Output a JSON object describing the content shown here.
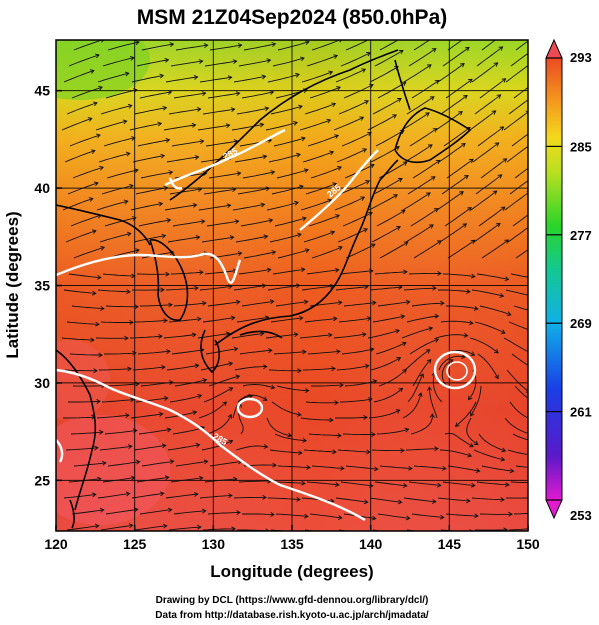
{
  "chart_data": {
    "type": "heatmap",
    "title": "MSM 21Z04Sep2024 (850.0hPa)",
    "xlabel": "Longitude (degrees)",
    "ylabel": "Latitude  (degrees)",
    "xlim": [
      120,
      150
    ],
    "ylim": [
      22.4,
      47.6
    ],
    "x_ticks": [
      120,
      125,
      130,
      135,
      140,
      145,
      150
    ],
    "x_tick_labels": [
      "120",
      "125",
      "130",
      "135",
      "140",
      "145",
      "150"
    ],
    "y_ticks": [
      25,
      30,
      35,
      40,
      45
    ],
    "y_tick_labels": [
      "25",
      "30",
      "35",
      "40",
      "45"
    ],
    "grid": true,
    "colorbar": {
      "placement": "right",
      "range": [
        253,
        293
      ],
      "ticks": [
        253,
        261,
        269,
        277,
        285,
        293
      ],
      "tick_labels": [
        "253",
        "261",
        "269",
        "277",
        "285",
        "293"
      ],
      "extend": "both"
    },
    "contours": [
      {
        "label": "285",
        "color": "#ffffff"
      }
    ],
    "overlay": "streamlines of wind",
    "credit_lines": [
      "Drawing by DCL (https://www.gfd-dennou.org/library/dcl/)",
      "Data from http://database.rish.kyoto-u.ac.jp/arch/jmadata/"
    ]
  },
  "colors": {
    "warm": "#e8442a",
    "hot": "#f05060",
    "mid": "#f28a1e",
    "cool": "#b6d82a",
    "contour": "#ffffff",
    "coast": "#000000"
  }
}
